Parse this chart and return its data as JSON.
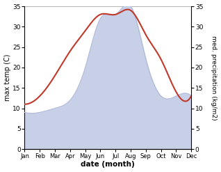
{
  "months": [
    "Jan",
    "Feb",
    "Mar",
    "Apr",
    "May",
    "Jun",
    "Jul",
    "Aug",
    "Sep",
    "Oct",
    "Nov",
    "Dec"
  ],
  "temperature": [
    11,
    13,
    18,
    24,
    29,
    33,
    33,
    34,
    28,
    22,
    14,
    13
  ],
  "precipitation": [
    9,
    9,
    10,
    12,
    20,
    32,
    33,
    35,
    22,
    13,
    13,
    13
  ],
  "temp_color": "#c0392b",
  "precip_fill_color": "#c8d0e8",
  "precip_line_color": "#b0badc",
  "ylim_left": [
    0,
    35
  ],
  "ylim_right": [
    0,
    35
  ],
  "yticks_left": [
    0,
    5,
    10,
    15,
    20,
    25,
    30,
    35
  ],
  "yticks_right": [
    0,
    5,
    10,
    15,
    20,
    25,
    30,
    35
  ],
  "ylabel_left": "max temp (C)",
  "ylabel_right": "med. precipitation (kg/m2)",
  "xlabel": "date (month)",
  "bg_color": "#ffffff",
  "fig_width": 3.18,
  "fig_height": 2.47,
  "dpi": 100
}
